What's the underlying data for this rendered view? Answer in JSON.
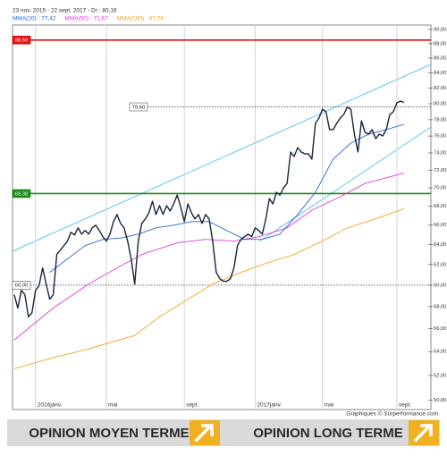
{
  "chart_data": {
    "type": "line",
    "subtitle": "23 nov. 2015 - 22 sept. 2017 - Dr : 80,16",
    "log_y": true,
    "ylim": [
      49.26,
      90.63
    ],
    "xlim": [
      -0.5,
      117.6
    ],
    "yticks": [
      {
        "value": 90,
        "label": "90,00"
      },
      {
        "value": 88,
        "label": "88,00"
      },
      {
        "value": 86,
        "label": "86,00"
      },
      {
        "value": 84,
        "label": "84,00"
      },
      {
        "value": 82,
        "label": "82,00"
      },
      {
        "value": 80,
        "label": "80,00"
      },
      {
        "value": 78,
        "label": "78,00"
      },
      {
        "value": 76,
        "label": "76,00"
      },
      {
        "value": 74,
        "label": "74,00"
      },
      {
        "value": 72,
        "label": "72,00"
      },
      {
        "value": 70,
        "label": "70,00"
      },
      {
        "value": 68,
        "label": "68,00"
      },
      {
        "value": 66,
        "label": "66,00"
      },
      {
        "value": 64,
        "label": "64,00"
      },
      {
        "value": 62,
        "label": "62,00"
      },
      {
        "value": 60,
        "label": "60,00"
      },
      {
        "value": 58,
        "label": "58,00"
      },
      {
        "value": 56,
        "label": "56,00"
      },
      {
        "value": 54,
        "label": "54,00"
      },
      {
        "value": 52,
        "label": "52,00"
      },
      {
        "value": 50,
        "label": "50,00"
      }
    ],
    "xticks": [
      {
        "value": 6,
        "label": "2016janv."
      },
      {
        "value": 26,
        "label": "mai"
      },
      {
        "value": 48,
        "label": "sept."
      },
      {
        "value": 68,
        "label": "2017janv."
      },
      {
        "value": 87,
        "label": "mai"
      },
      {
        "value": 108,
        "label": "sept."
      }
    ],
    "grid": true,
    "levels": [
      {
        "value": 88.5,
        "label": "88,50",
        "color": "#e01010",
        "style": "solid"
      },
      {
        "value": 69.38,
        "label": "69,38",
        "color": "#1a8a1a",
        "style": "solid"
      },
      {
        "value": 79.6,
        "label": "79,60",
        "color": "#333333",
        "style": "dotted"
      },
      {
        "value": 60,
        "label": "60,00",
        "color": "#333333",
        "style": "dotted"
      }
    ],
    "series": [
      {
        "color": "#16263a",
        "x": [
          0,
          1,
          2,
          3,
          4,
          5,
          6,
          7,
          8,
          9,
          10,
          11,
          12,
          13,
          14,
          15,
          16,
          17,
          18,
          19,
          20,
          21,
          22,
          23,
          24,
          25,
          26,
          27,
          28,
          29,
          30,
          31,
          32,
          33,
          34,
          35,
          36,
          37,
          38,
          39,
          40,
          41,
          42,
          43,
          44,
          45,
          46,
          47,
          48,
          49,
          50,
          51,
          52,
          53,
          54,
          55,
          56,
          57,
          58,
          59,
          60,
          61,
          62,
          63,
          64,
          65,
          66,
          67,
          68,
          69,
          70,
          71,
          72,
          73,
          74,
          75,
          76,
          77,
          78,
          79,
          80,
          81,
          82,
          83,
          84,
          85,
          86,
          87,
          88,
          89,
          90,
          91,
          92,
          93,
          94,
          95,
          96,
          97,
          98,
          99,
          100,
          101,
          102,
          103,
          104,
          105,
          106,
          107,
          108,
          109,
          110
        ],
        "values": [
          59.1,
          57.86,
          59.51,
          59.1,
          57.05,
          57.45,
          59.51,
          59.94,
          61.66,
          60.11,
          58.68,
          59.1,
          62.99,
          63.43,
          63.88,
          64.34,
          65.25,
          64.97,
          65.71,
          65.06,
          65.43,
          65.06,
          65.71,
          65.99,
          65.43,
          64.79,
          64.34,
          65.06,
          66.36,
          67.11,
          66.17,
          65.71,
          64.34,
          62.54,
          60.11,
          64.34,
          66.17,
          66.64,
          67.3,
          68.54,
          67.11,
          68.06,
          67.11,
          68.06,
          67.49,
          68.25,
          69.22,
          67.87,
          66.36,
          68.25,
          67.3,
          66.64,
          67.11,
          66.17,
          67.11,
          66.64,
          64.34,
          61.23,
          60.62,
          60.37,
          60.37,
          60.62,
          61.66,
          63.88,
          64.52,
          64.79,
          65.06,
          64.79,
          65.71,
          65.43,
          65.06,
          66.64,
          68.83,
          68.25,
          69.52,
          69.22,
          70.01,
          70.51,
          74.1,
          73.58,
          74.63,
          74.1,
          73.89,
          73.89,
          73.27,
          77.54,
          78.2,
          79.32,
          78.98,
          76.78,
          76.78,
          77.54,
          78.2,
          78.65,
          79.55,
          79.32,
          76.23,
          74.1,
          77.87,
          76.45,
          76.23,
          76.78,
          75.69,
          76.23,
          76.02,
          76.78,
          78.65,
          78.98,
          80.11,
          80.34,
          80.16
        ]
      },
      {
        "name": "MMA(20) : 77,42",
        "color": "#2f62d6",
        "x": [
          10,
          15,
          20,
          25,
          30,
          35,
          40,
          45,
          50,
          55,
          60,
          65,
          70,
          75,
          80,
          85,
          90,
          95,
          100,
          105,
          110
        ],
        "values": [
          61.23,
          62.54,
          63.88,
          64.52,
          64.66,
          65.06,
          65.71,
          65.99,
          66.36,
          66.36,
          65.43,
          64.52,
          64.52,
          65.06,
          67.11,
          69.52,
          73.27,
          75.16,
          76.23,
          76.78,
          77.42
        ]
      },
      {
        "name": "MMA(50) : 71,67",
        "color": "#e03ad8",
        "x": [
          0,
          11,
          21,
          29,
          36,
          46,
          54,
          62,
          69,
          77,
          84,
          92,
          99,
          110
        ],
        "values": [
          55.01,
          57.86,
          60.11,
          61.66,
          62.99,
          64.16,
          64.52,
          64.34,
          64.79,
          65.71,
          67.58,
          69.03,
          70.51,
          71.67
        ]
      },
      {
        "name": "MMA(100) : 67,74",
        "color": "#f5a01e",
        "x": [
          0,
          11,
          21,
          34,
          41,
          49,
          56,
          64,
          71,
          79,
          87,
          94,
          102,
          110
        ],
        "values": [
          52.57,
          53.48,
          54.24,
          55.4,
          57.05,
          58.68,
          60.11,
          61.23,
          62.1,
          62.99,
          64.34,
          65.71,
          66.64,
          67.74
        ]
      }
    ]
  },
  "footer": "Graphiques © Surperformance.com",
  "opinions": [
    "OPINION MOYEN TERME",
    "OPINION LONG TERME"
  ]
}
